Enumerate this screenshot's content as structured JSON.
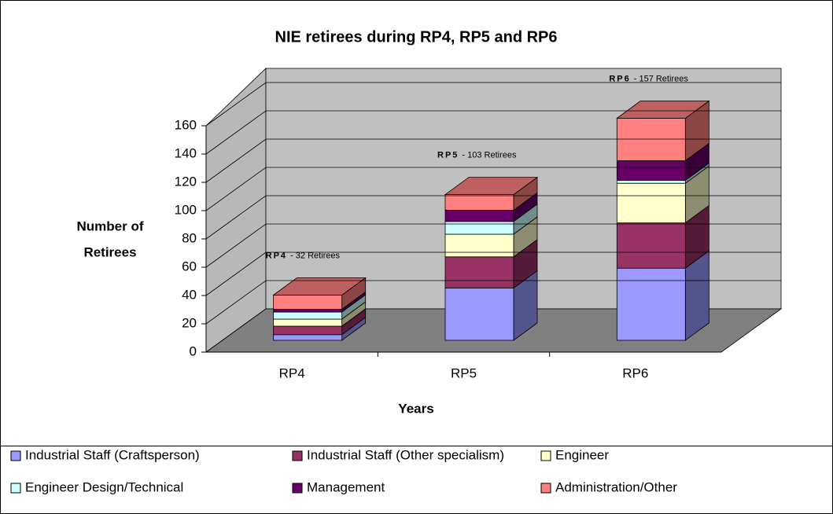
{
  "chart_data": {
    "type": "bar3d_stacked",
    "title": "NIE retirees during RP4, RP5 and RP6",
    "y_label": [
      "Number of",
      "Retirees"
    ],
    "x_label": "Years",
    "categories": [
      "RP4",
      "RP5",
      "RP6"
    ],
    "ylim": [
      0,
      160
    ],
    "yticks": [
      0,
      20,
      40,
      60,
      80,
      100,
      120,
      140,
      160
    ],
    "grid": true,
    "legend": "bottom",
    "annotations": [
      {
        "bold": "RP4",
        "text": "- 32 Retirees"
      },
      {
        "bold": "RP5",
        "text": "- 103 Retirees"
      },
      {
        "bold": "RP6",
        "text": "- 157 Retirees"
      }
    ],
    "series": [
      {
        "name": "Industrial Staff (Craftsperson)",
        "color": "#9999ff",
        "values": [
          4,
          37,
          51
        ]
      },
      {
        "name": "Industrial Staff (Other specialism)",
        "color": "#993366",
        "values": [
          6,
          22,
          32
        ]
      },
      {
        "name": "Engineer",
        "color": "#ffffcc",
        "values": [
          5,
          16,
          28
        ]
      },
      {
        "name": "Engineer Design/Technical",
        "color": "#ccffff",
        "values": [
          5,
          9,
          2
        ]
      },
      {
        "name": "Management",
        "color": "#660066",
        "values": [
          2,
          8,
          14
        ]
      },
      {
        "name": "Administration/Other",
        "color": "#ff8080",
        "values": [
          10,
          11,
          30
        ]
      }
    ]
  }
}
